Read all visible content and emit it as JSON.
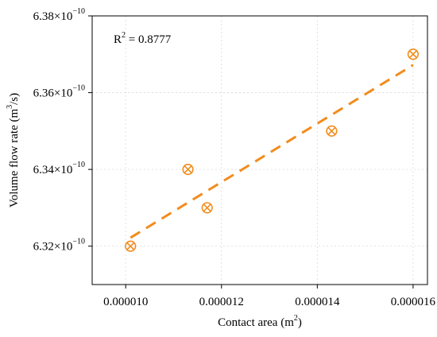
{
  "chart_data": {
    "type": "scatter",
    "title": "",
    "xlabel": "Contact area (m",
    "xlabel_sup": "2",
    "xlabel_end": ")",
    "ylabel": "Volume flow rate (m",
    "ylabel_sup": "3",
    "ylabel_end": "/s)",
    "xlim": [
      9.3e-06,
      1.63e-05
    ],
    "ylim": [
      6.31e-10,
      6.38e-10
    ],
    "x_ticks": [
      {
        "value": 1e-05,
        "label": "0.000010"
      },
      {
        "value": 1.2e-05,
        "label": "0.000012"
      },
      {
        "value": 1.4e-05,
        "label": "0.000014"
      },
      {
        "value": 1.6e-05,
        "label": "0.000016"
      }
    ],
    "y_ticks": [
      {
        "value": 6.32e-10,
        "mant": "6.32×10",
        "exp": "−10"
      },
      {
        "value": 6.34e-10,
        "mant": "6.34×10",
        "exp": "−10"
      },
      {
        "value": 6.36e-10,
        "mant": "6.36×10",
        "exp": "−10"
      },
      {
        "value": 6.38e-10,
        "mant": "6.38×10",
        "exp": "−10"
      }
    ],
    "grid": true,
    "series": [
      {
        "x": [
          1.01e-05,
          1.13e-05,
          1.17e-05,
          1.43e-05,
          1.6e-05
        ],
        "y": [
          6.32e-10,
          6.34e-10,
          6.33e-10,
          6.35e-10,
          6.37e-10
        ]
      }
    ],
    "fit_line": {
      "x": [
        1.01e-05,
        1.6e-05
      ],
      "y": [
        6.3222e-10,
        6.3672e-10
      ]
    },
    "annotation": {
      "text_prefix": "R",
      "text_sup": "2",
      "text_rest": " = 0.8777"
    },
    "color": "#f28c1c"
  }
}
